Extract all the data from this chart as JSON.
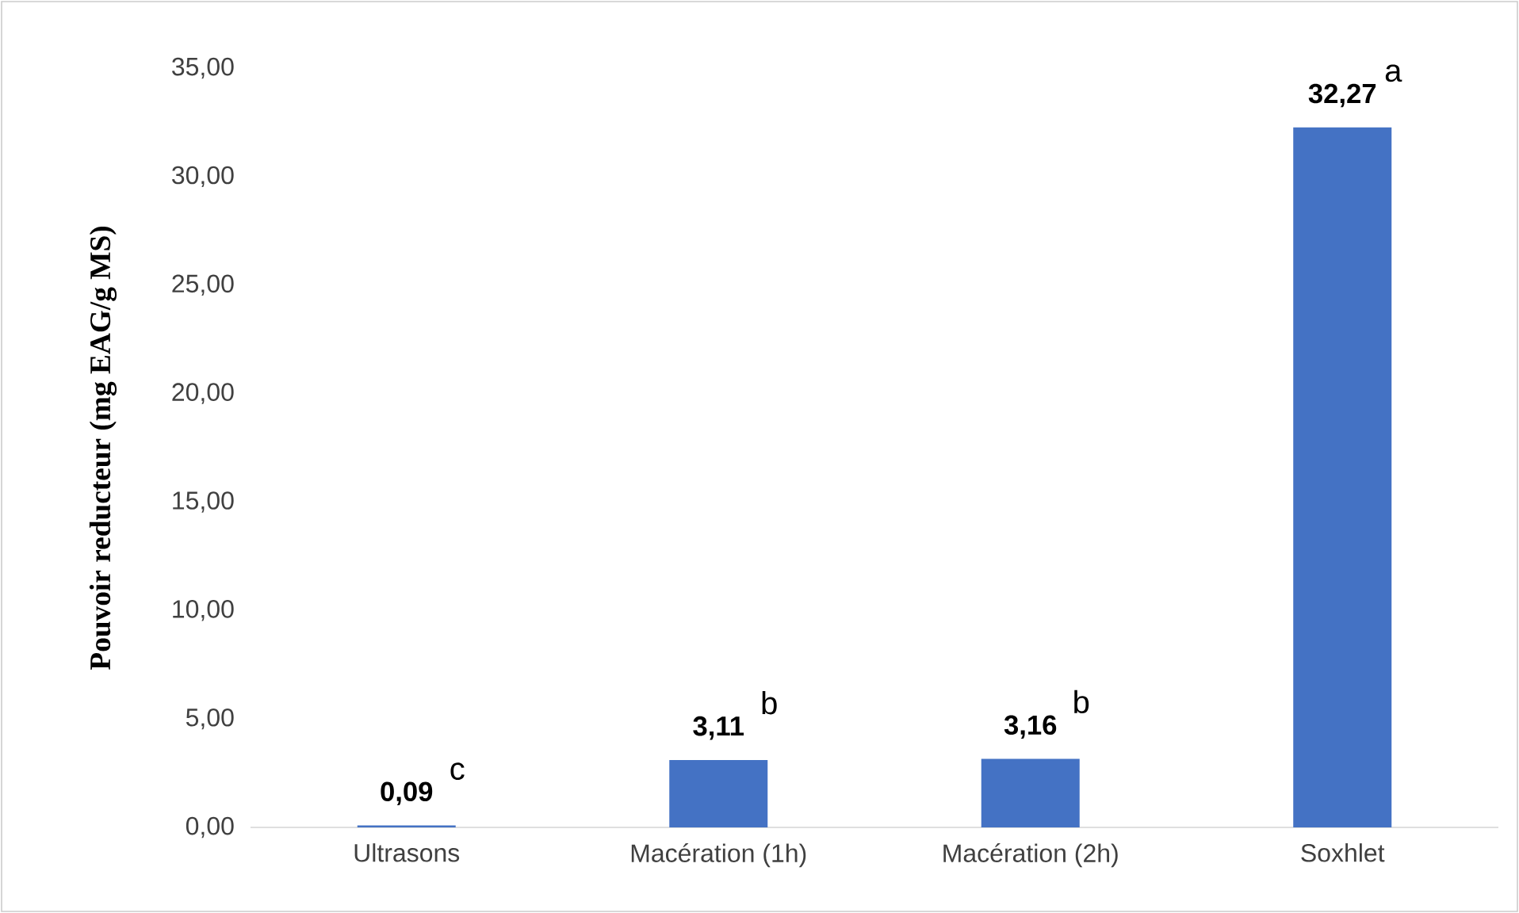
{
  "chart_data": {
    "type": "bar",
    "ylabel": "Pouvoir reducteur (mg EAG/g MS)",
    "categories": [
      "Ultrasons",
      "Macération (1h)",
      "Macération (2h)",
      "Soxhlet"
    ],
    "values": [
      0.09,
      3.11,
      3.16,
      32.27
    ],
    "value_labels": [
      "0,09",
      "3,11",
      "3,16",
      "32,27"
    ],
    "color": "#4472c4",
    "ylim": [
      0,
      35
    ],
    "yticks": [
      {
        "value": 0,
        "label": "0,00"
      },
      {
        "value": 5,
        "label": "5,00"
      },
      {
        "value": 10,
        "label": "10,00"
      },
      {
        "value": 15,
        "label": "15,00"
      },
      {
        "value": 20,
        "label": "20,00"
      },
      {
        "value": 25,
        "label": "25,00"
      },
      {
        "value": 30,
        "label": "30,00"
      },
      {
        "value": 35,
        "label": "35,00"
      }
    ],
    "annotations": [
      {
        "text": "c",
        "x": "Ultrasons",
        "y": 0.09
      },
      {
        "text": "b",
        "x": "Macération (1h)",
        "y": 3.11
      },
      {
        "text": "b",
        "x": "Macération (2h)",
        "y": 3.16
      },
      {
        "text": "a",
        "x": "Soxhlet",
        "y": 32.27
      }
    ],
    "grid": false
  }
}
